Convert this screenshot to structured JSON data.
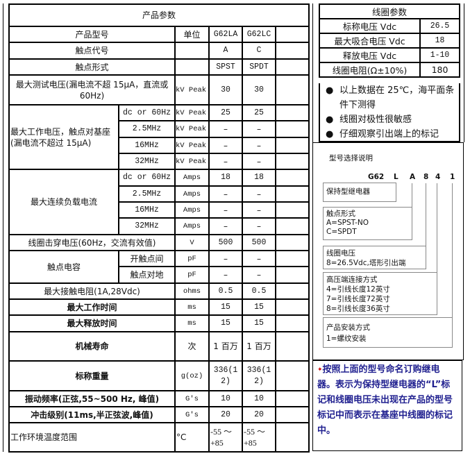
{
  "product_table": {
    "title": "产品参数",
    "header": {
      "label": "产品型号",
      "unit": "单位",
      "models": [
        "G62LA",
        "G62LC"
      ]
    },
    "contact_code": {
      "label": "触点代号",
      "values": [
        "A",
        "C"
      ]
    },
    "contact_form": {
      "label": "触点形式",
      "values": [
        "SPST",
        "SPDT"
      ]
    },
    "max_test_voltage": {
      "label": "最大测试电压(漏电流不超 15μA，直流或 60Hz)",
      "unit": "kV Peak",
      "values": [
        "30",
        "30"
      ]
    },
    "max_working_voltage": {
      "label": "最大工作电压，触点对基座(漏电流不超过 15μA)",
      "rows": [
        {
          "freq": "dc or 60Hz",
          "unit": "kV Peak",
          "values": [
            "25",
            "25"
          ]
        },
        {
          "freq": "2.5MHz",
          "unit": "kV Peak",
          "values": [
            "–",
            "–"
          ]
        },
        {
          "freq": "16MHz",
          "unit": "kV Peak",
          "values": [
            "–",
            "–"
          ]
        },
        {
          "freq": "32MHz",
          "unit": "kV Peak",
          "values": [
            "–",
            "–"
          ]
        }
      ]
    },
    "max_continuous_current": {
      "label": "最大连续负载电流",
      "rows": [
        {
          "freq": "dc or 60Hz",
          "unit": "Amps",
          "values": [
            "18",
            "18"
          ]
        },
        {
          "freq": "2.5MHz",
          "unit": "Amps",
          "values": [
            "–",
            "–"
          ]
        },
        {
          "freq": "16MHz",
          "unit": "Amps",
          "values": [
            "–",
            "–"
          ]
        },
        {
          "freq": "32MHz",
          "unit": "Amps",
          "values": [
            "–",
            "–"
          ]
        }
      ]
    },
    "coil_breakdown": {
      "label": "线圈击穿电压(60Hz，交流有效值)",
      "unit": "V",
      "values": [
        "500",
        "500"
      ]
    },
    "contact_capacitance": {
      "label": "触点电容",
      "rows": [
        {
          "sub": "开触点间",
          "unit": "pF",
          "values": [
            "–",
            "–"
          ]
        },
        {
          "sub": "触点对地",
          "unit": "pF",
          "values": [
            "–",
            "–"
          ]
        }
      ]
    },
    "max_contact_resistance": {
      "label": "最大接触电阻(1A,28Vdc)",
      "unit": "ohms",
      "values": [
        "0.5",
        "0.5"
      ]
    },
    "max_operate_time": {
      "label": "最大工作时间",
      "unit": "ms",
      "values": [
        "15",
        "15"
      ]
    },
    "max_release_time": {
      "label": "最大释放时间",
      "unit": "ms",
      "values": [
        "15",
        "15"
      ]
    },
    "mechanical_life": {
      "label": "机械寿命",
      "unit": "次",
      "values": [
        "1 百万",
        "1 百万"
      ]
    },
    "weight": {
      "label": "标称重量",
      "unit": "g(oz)",
      "values": [
        "336(12)",
        "336(12)"
      ]
    },
    "vibration": {
      "label": "振动频率(正弦,55~500 Hz, 峰值)",
      "unit": "G's",
      "values": [
        "10",
        "10"
      ]
    },
    "shock": {
      "label": "冲击级别(11ms,半正弦波,峰值)",
      "unit": "G's",
      "values": [
        "20",
        "20"
      ]
    },
    "temp_range": {
      "label": "工作环境温度范围",
      "unit": "°C",
      "values": [
        "-55 ～+85",
        "-55 ～+85"
      ]
    }
  },
  "coil_table": {
    "title": "线圈参数",
    "rows": [
      {
        "label": "标称电压 Vdc",
        "value": "26.5"
      },
      {
        "label": "最大吸合电压 Vdc",
        "value": "18"
      },
      {
        "label": "释放电压 Vdc",
        "value": "1-10"
      },
      {
        "label": "线圈电阻(Ω±10%)",
        "value": "180"
      }
    ],
    "notes": [
      "以上数据在 25℃，海平面条件下测得",
      "线圈对极性很敏感",
      "仔细观察引出端上的标记"
    ]
  },
  "model_selection": {
    "title": "型号选择说明",
    "code": [
      "G62",
      "L",
      "A",
      "8",
      "4",
      "1"
    ],
    "boxes": [
      [
        "保持型继电器"
      ],
      [
        "触点形式",
        "A=SPST-NO",
        "C=SPDT"
      ],
      [
        "线圈电压",
        "8=26.5Vdc,塔形引出端"
      ],
      [
        "高压端连接方式",
        "4=引线长度12英寸",
        "7=引线长度72英寸",
        "8=引线长度36英寸"
      ],
      [
        "产品安装方式",
        "1=螺纹安装"
      ]
    ]
  },
  "order_note": "按照上面的型号命名订购继电器。表示为保持型继电器的“L”标记和线圈电压未出现在产品的型号标记中而表示在基座中线圈的标记中。",
  "colors": {
    "note_text": "#1f1f8f",
    "note_star": "#cc0000"
  }
}
